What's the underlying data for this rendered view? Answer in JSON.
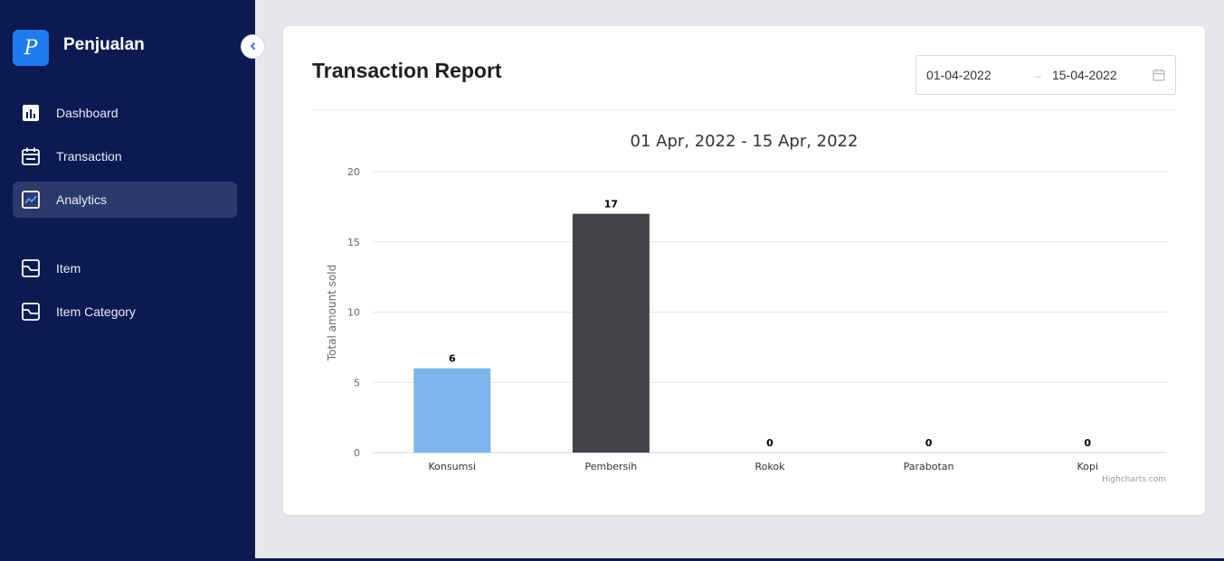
{
  "app": {
    "brand_letter": "P",
    "brand_name": "Penjualan"
  },
  "sidebar": {
    "items": [
      {
        "label": "Dashboard",
        "icon": "bar-chart-icon",
        "active": false
      },
      {
        "label": "Transaction",
        "icon": "calendar-icon",
        "active": false
      },
      {
        "label": "Analytics",
        "icon": "line-chart-icon",
        "active": true
      },
      {
        "label": "Item",
        "icon": "item-icon",
        "active": false
      },
      {
        "label": "Item Category",
        "icon": "item-category-icon",
        "active": false
      }
    ]
  },
  "report": {
    "title": "Transaction Report",
    "date_start": "01-04-2022",
    "date_arrow": "→",
    "date_end": "15-04-2022"
  },
  "colors": {
    "sidebar_bg": "#0b1a52",
    "accent": "#1d7cf2",
    "bar_blue": "#7cb5ec",
    "bar_dark": "#434348"
  },
  "chart_data": {
    "type": "bar",
    "title": "01 Apr, 2022 - 15 Apr, 2022",
    "ylabel": "Total amount sold",
    "categories": [
      "Konsumsi",
      "Pembersih",
      "Rokok",
      "Parabotan",
      "Kopi"
    ],
    "values": [
      6,
      17,
      0,
      0,
      0
    ],
    "bar_colors": [
      "#7cb5ec",
      "#434348",
      "#90ed7d",
      "#f7a35c",
      "#8085e9"
    ],
    "ylim": [
      0,
      20
    ],
    "yticks": [
      0,
      5,
      10,
      15,
      20
    ],
    "grid": true,
    "credits": "Highcharts.com"
  }
}
